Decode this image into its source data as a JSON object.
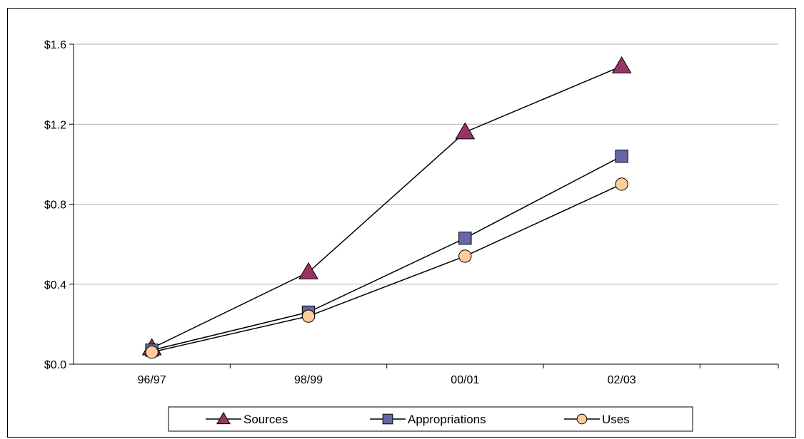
{
  "chart_data": {
    "type": "line",
    "categories": [
      "96/97",
      "98/99",
      "00/01",
      "02/03"
    ],
    "y_ticks": [
      "$0.0",
      "$0.4",
      "$0.8",
      "$1.2",
      "$1.6"
    ],
    "ylim": [
      0,
      1.6
    ],
    "grid": true,
    "legend_position": "bottom",
    "series": [
      {
        "name": "Sources",
        "values": [
          0.08,
          0.46,
          1.16,
          1.49
        ],
        "marker": "triangle",
        "color": "#993366"
      },
      {
        "name": "Appropriations",
        "values": [
          0.07,
          0.26,
          0.63,
          1.04
        ],
        "marker": "square",
        "color": "#6666aa"
      },
      {
        "name": "Uses",
        "values": [
          0.06,
          0.24,
          0.54,
          0.9
        ],
        "marker": "circle",
        "color": "#ffcc99"
      }
    ]
  }
}
